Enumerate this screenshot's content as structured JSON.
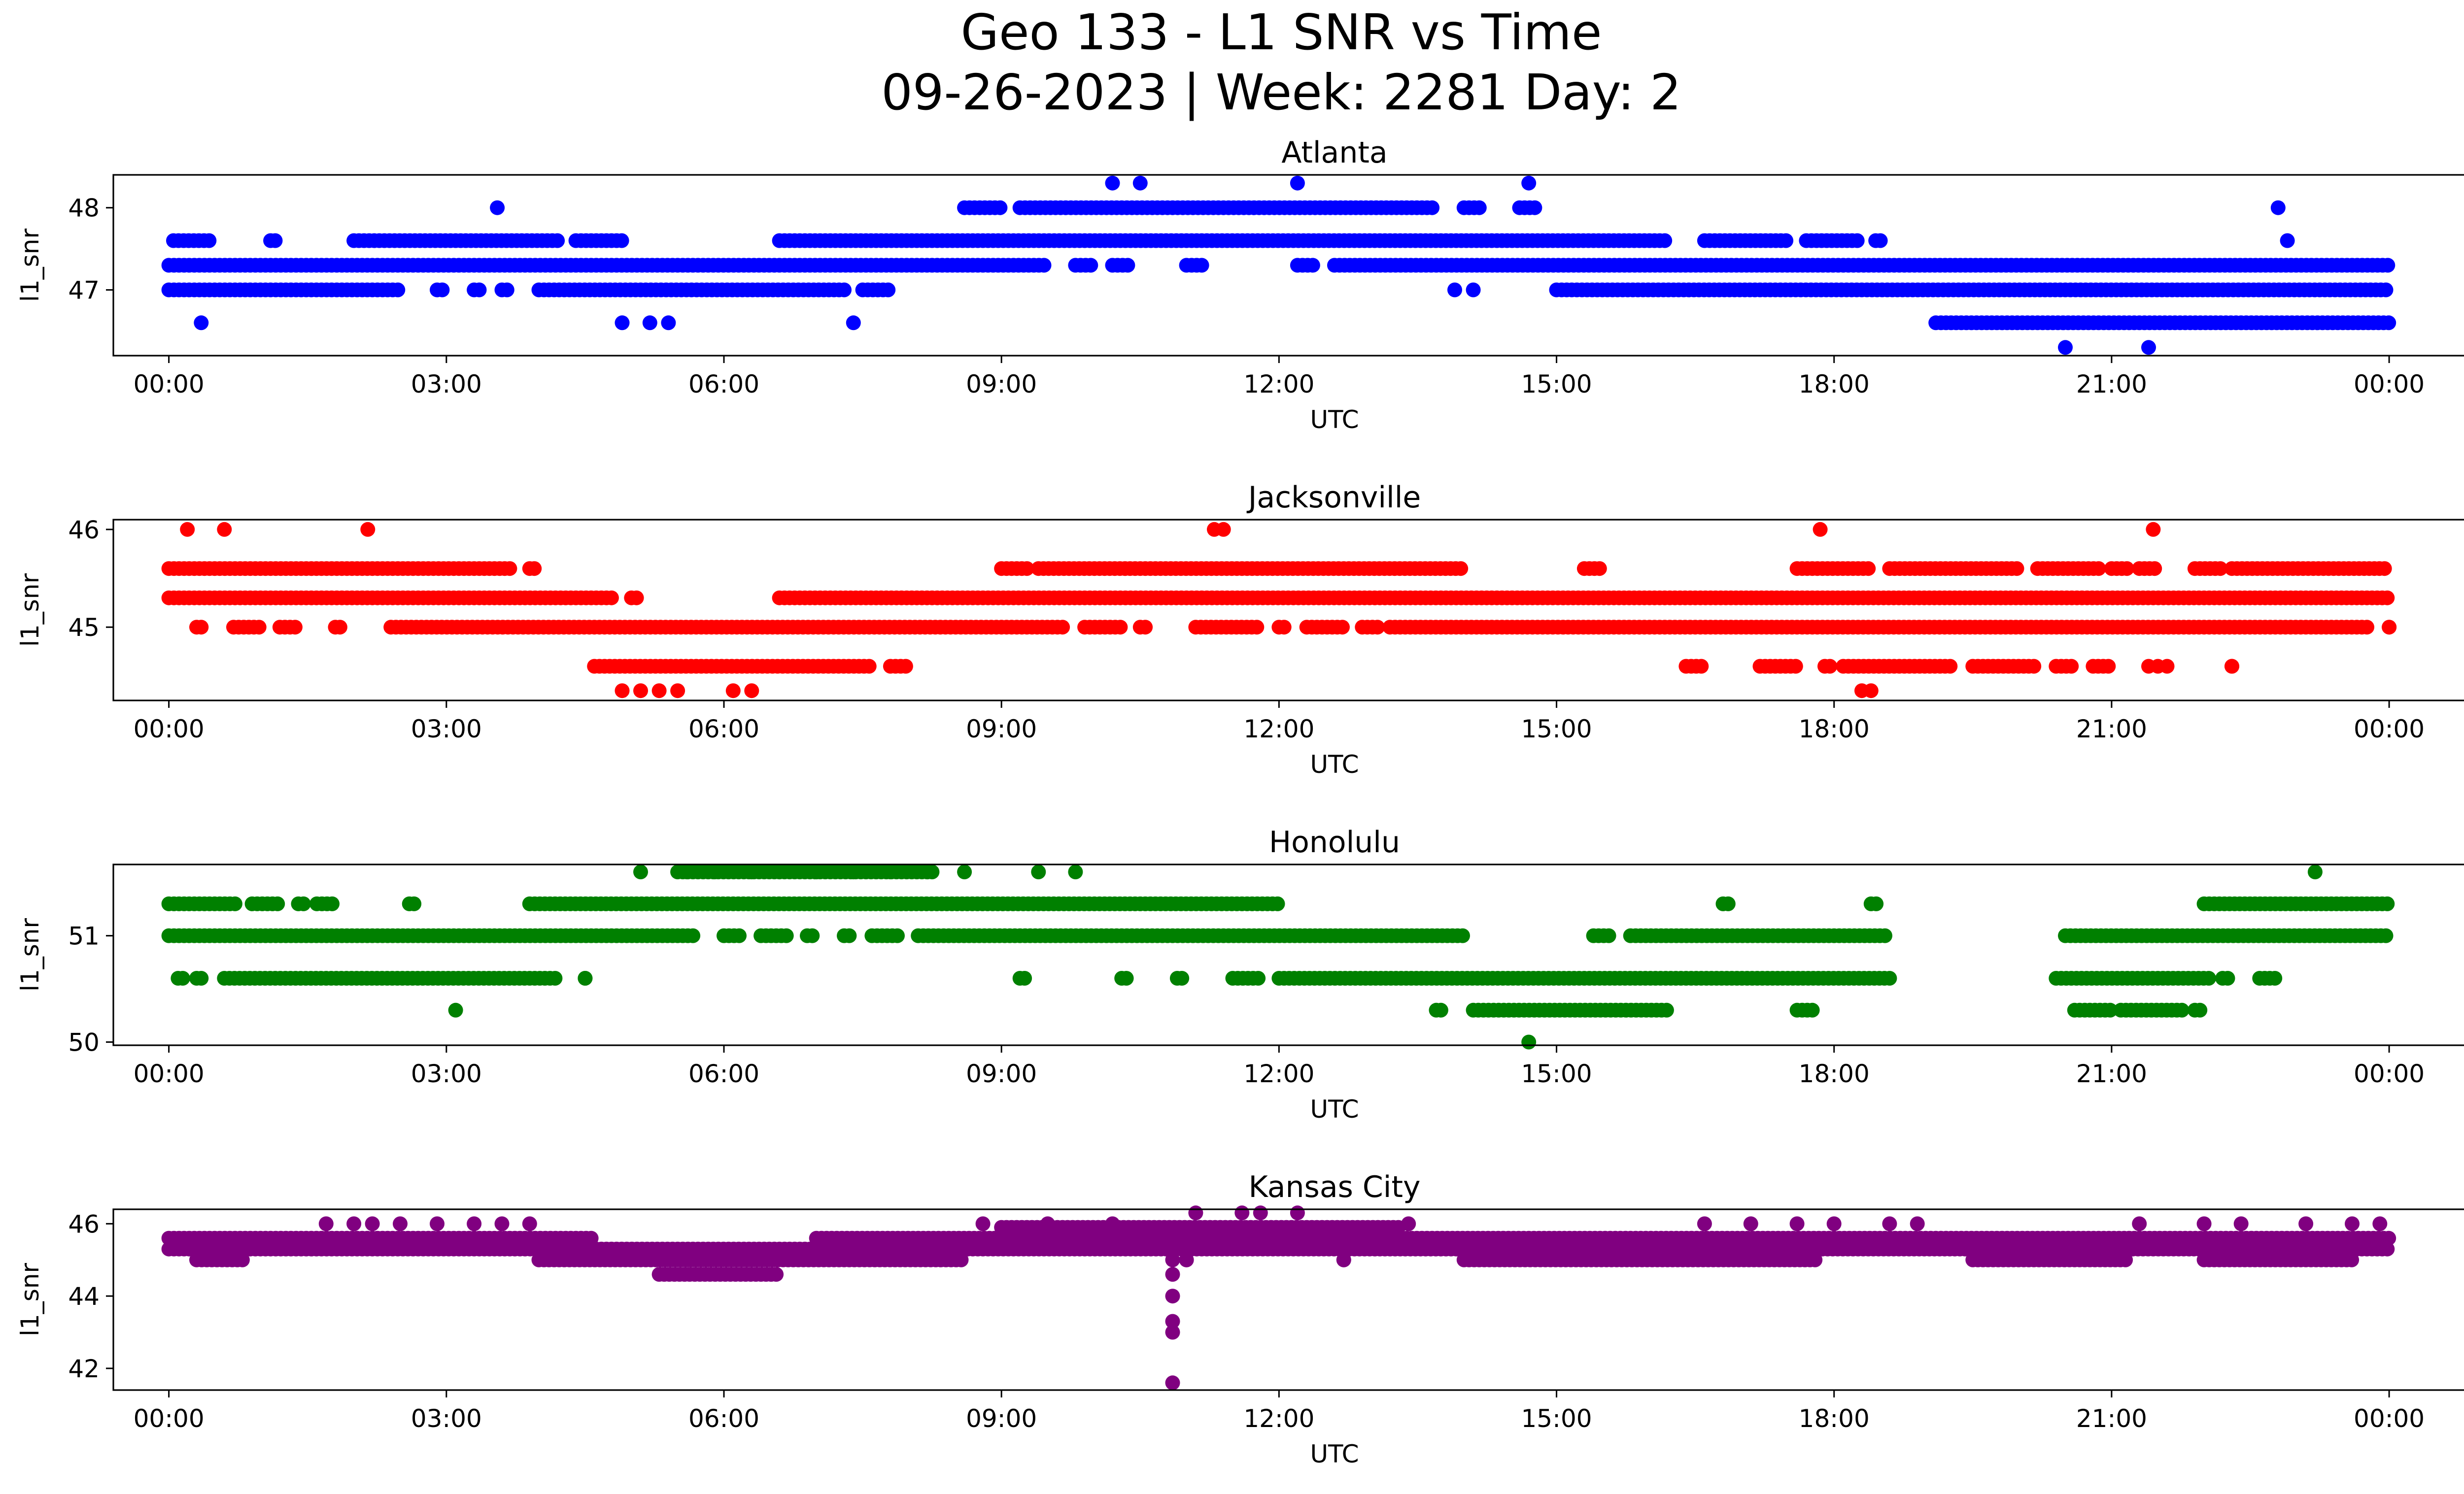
{
  "figure": {
    "title_line1": "Geo 133 - L1 SNR vs Time",
    "title_line2": "09-26-2023 | Week: 2281 Day: 2"
  },
  "chart_data": [
    {
      "type": "scatter",
      "title": "Atlanta",
      "xlabel": "UTC",
      "ylabel": "l1_snr",
      "color": "#0000ff",
      "x_unit": "hours UTC",
      "xlim": [
        -0.6,
        25.8
      ],
      "xticks": [
        "00:00",
        "03:00",
        "06:00",
        "09:00",
        "12:00",
        "15:00",
        "18:00",
        "21:00",
        "00:00"
      ],
      "ylim": [
        46.2,
        48.4
      ],
      "yticks": [
        47,
        48
      ],
      "bands": [
        {
          "y": 47.0,
          "ranges": [
            [
              0.0,
              2.5
            ],
            [
              2.9,
              3.0
            ],
            [
              3.3,
              3.4
            ],
            [
              3.6,
              3.7
            ],
            [
              4.0,
              7.3
            ],
            [
              7.5,
              7.8
            ],
            [
              15.0,
              24.0
            ]
          ]
        },
        {
          "y": 47.3,
          "ranges": [
            [
              0.0,
              9.5
            ],
            [
              9.8,
              10.0
            ],
            [
              10.2,
              10.4
            ],
            [
              11.0,
              11.2
            ],
            [
              12.2,
              12.4
            ],
            [
              12.6,
              24.0
            ]
          ]
        },
        {
          "y": 47.6,
          "ranges": [
            [
              0.05,
              0.45
            ],
            [
              1.1,
              1.15
            ],
            [
              2.0,
              4.2
            ],
            [
              4.4,
              4.9
            ],
            [
              6.6,
              16.2
            ],
            [
              16.6,
              17.5
            ],
            [
              17.7,
              18.3
            ],
            [
              18.45,
              18.5
            ]
          ]
        },
        {
          "y": 48.0,
          "ranges": [
            [
              8.6,
              9.0
            ],
            [
              9.2,
              13.7
            ],
            [
              14.0,
              14.2
            ],
            [
              14.6,
              14.8
            ]
          ]
        },
        {
          "y": 46.6,
          "ranges": [
            [
              19.1,
              24.0
            ]
          ]
        }
      ],
      "points": [
        {
          "x": 0.35,
          "y": 46.6
        },
        {
          "x": 4.9,
          "y": 46.6
        },
        {
          "x": 5.2,
          "y": 46.6
        },
        {
          "x": 5.4,
          "y": 46.6
        },
        {
          "x": 7.4,
          "y": 46.6
        },
        {
          "x": 3.55,
          "y": 48.0
        },
        {
          "x": 10.2,
          "y": 48.3
        },
        {
          "x": 10.5,
          "y": 48.3
        },
        {
          "x": 12.2,
          "y": 48.3
        },
        {
          "x": 14.7,
          "y": 48.3
        },
        {
          "x": 13.9,
          "y": 47.0
        },
        {
          "x": 14.1,
          "y": 47.0
        },
        {
          "x": 20.5,
          "y": 46.3
        },
        {
          "x": 21.4,
          "y": 46.3
        },
        {
          "x": 22.8,
          "y": 48.0
        },
        {
          "x": 22.9,
          "y": 47.6
        }
      ]
    },
    {
      "type": "scatter",
      "title": "Jacksonville",
      "xlabel": "UTC",
      "ylabel": "l1_snr",
      "color": "#ff0000",
      "x_unit": "hours UTC",
      "xlim": [
        -0.6,
        25.8
      ],
      "xticks": [
        "00:00",
        "03:00",
        "06:00",
        "09:00",
        "12:00",
        "15:00",
        "18:00",
        "21:00",
        "00:00"
      ],
      "ylim": [
        44.25,
        46.1
      ],
      "yticks": [
        45,
        46
      ],
      "bands": [
        {
          "y": 45.3,
          "ranges": [
            [
              0.0,
              4.8
            ],
            [
              5.0,
              5.1
            ],
            [
              6.6,
              24.0
            ]
          ]
        },
        {
          "y": 45.6,
          "ranges": [
            [
              0.0,
              3.7
            ],
            [
              3.9,
              3.95
            ],
            [
              9.0,
              9.3
            ],
            [
              9.4,
              14.0
            ],
            [
              15.3,
              15.5
            ],
            [
              17.6,
              18.4
            ],
            [
              18.6,
              20.0
            ],
            [
              20.2,
              20.9
            ],
            [
              21.0,
              21.2
            ],
            [
              21.3,
              21.5
            ],
            [
              21.9,
              22.2
            ],
            [
              22.3,
              24.0
            ]
          ]
        },
        {
          "y": 45.0,
          "ranges": [
            [
              0.3,
              0.35
            ],
            [
              0.7,
              1.0
            ],
            [
              1.2,
              1.4
            ],
            [
              1.8,
              1.85
            ],
            [
              2.4,
              9.7
            ],
            [
              9.9,
              10.3
            ],
            [
              10.5,
              10.6
            ],
            [
              11.1,
              11.8
            ],
            [
              12.0,
              12.1
            ],
            [
              12.3,
              12.7
            ],
            [
              12.9,
              13.1
            ],
            [
              13.2,
              23.8
            ],
            [
              24.0,
              24.0
            ]
          ]
        },
        {
          "y": 44.6,
          "ranges": [
            [
              4.6,
              7.6
            ],
            [
              7.8,
              8.0
            ],
            [
              16.4,
              16.6
            ],
            [
              17.2,
              17.6
            ],
            [
              17.9,
              18.0
            ],
            [
              18.1,
              19.3
            ],
            [
              19.5,
              20.2
            ],
            [
              20.4,
              20.6
            ],
            [
              20.8,
              21.0
            ],
            [
              22.3,
              22.3
            ]
          ]
        }
      ],
      "points": [
        {
          "x": 0.2,
          "y": 46.0
        },
        {
          "x": 0.6,
          "y": 46.0
        },
        {
          "x": 2.15,
          "y": 46.0
        },
        {
          "x": 11.3,
          "y": 46.0
        },
        {
          "x": 11.4,
          "y": 46.0
        },
        {
          "x": 17.85,
          "y": 46.0
        },
        {
          "x": 21.45,
          "y": 46.0
        },
        {
          "x": 4.9,
          "y": 44.35
        },
        {
          "x": 5.1,
          "y": 44.35
        },
        {
          "x": 5.3,
          "y": 44.35
        },
        {
          "x": 5.5,
          "y": 44.35
        },
        {
          "x": 6.1,
          "y": 44.35
        },
        {
          "x": 6.3,
          "y": 44.35
        },
        {
          "x": 18.3,
          "y": 44.35
        },
        {
          "x": 18.4,
          "y": 44.35
        },
        {
          "x": 21.4,
          "y": 44.6
        },
        {
          "x": 21.5,
          "y": 44.6
        },
        {
          "x": 21.6,
          "y": 44.6
        }
      ]
    },
    {
      "type": "scatter",
      "title": "Honolulu",
      "xlabel": "UTC",
      "ylabel": "l1_snr",
      "color": "#008000",
      "x_unit": "hours UTC",
      "xlim": [
        -0.6,
        25.8
      ],
      "xticks": [
        "00:00",
        "03:00",
        "06:00",
        "09:00",
        "12:00",
        "15:00",
        "18:00",
        "21:00",
        "00:00"
      ],
      "ylim": [
        49.97,
        51.67
      ],
      "yticks": [
        50,
        51
      ],
      "bands": [
        {
          "y": 51.0,
          "ranges": [
            [
              0.0,
              5.7
            ],
            [
              6.0,
              6.2
            ],
            [
              6.4,
              6.7
            ],
            [
              6.9,
              7.0
            ],
            [
              7.3,
              7.4
            ],
            [
              7.6,
              7.9
            ],
            [
              8.1,
              14.0
            ],
            [
              15.4,
              15.6
            ],
            [
              15.8,
              18.6
            ],
            [
              20.5,
              24.0
            ]
          ]
        },
        {
          "y": 51.3,
          "ranges": [
            [
              0.0,
              0.75
            ],
            [
              0.9,
              1.2
            ],
            [
              1.4,
              1.5
            ],
            [
              1.6,
              1.8
            ],
            [
              2.6,
              2.65
            ],
            [
              3.9,
              12.0
            ],
            [
              16.8,
              16.9
            ],
            [
              18.4,
              18.5
            ],
            [
              22.0,
              24.0
            ]
          ]
        },
        {
          "y": 50.6,
          "ranges": [
            [
              0.1,
              0.15
            ],
            [
              0.3,
              0.35
            ],
            [
              0.6,
              4.2
            ],
            [
              4.5,
              4.5
            ],
            [
              9.2,
              9.25
            ],
            [
              10.3,
              10.35
            ],
            [
              10.9,
              10.95
            ],
            [
              11.5,
              11.8
            ],
            [
              12.0,
              18.6
            ],
            [
              20.4,
              22.1
            ],
            [
              22.2,
              22.3
            ],
            [
              22.6,
              22.8
            ]
          ]
        },
        {
          "y": 50.3,
          "ranges": [
            [
              13.7,
              13.75
            ],
            [
              14.1,
              16.2
            ],
            [
              17.6,
              17.8
            ],
            [
              20.6,
              21.0
            ],
            [
              21.1,
              21.8
            ],
            [
              21.9,
              22.0
            ]
          ]
        }
      ],
      "points": [
        {
          "x": 3.1,
          "y": 50.3
        },
        {
          "x": 5.1,
          "y": 51.6
        },
        {
          "x": 14.7,
          "y": 50.0
        },
        {
          "x": 23.2,
          "y": 51.6
        },
        {
          "x": 9.4,
          "y": 51.6
        },
        {
          "x": 9.8,
          "y": 51.6
        },
        {
          "x": 8.6,
          "y": 51.6
        },
        {
          "x": 5.6,
          "y": 51.6
        },
        {
          "x": 5.9,
          "y": 51.6
        },
        {
          "x": 6.3,
          "y": 51.6
        },
        {
          "x": 6.6,
          "y": 51.6
        },
        {
          "x": 7.0,
          "y": 51.6
        },
        {
          "x": 7.4,
          "y": 51.6
        },
        {
          "x": 7.8,
          "y": 51.6
        },
        {
          "x": 8.2,
          "y": 51.6
        }
      ],
      "bands_extra": [
        {
          "y": 51.6,
          "ranges": [
            [
              5.5,
              8.3
            ]
          ]
        }
      ]
    },
    {
      "type": "scatter",
      "title": "Kansas City",
      "xlabel": "UTC",
      "ylabel": "l1_snr",
      "color": "#800080",
      "x_unit": "hours UTC",
      "xlim": [
        -0.6,
        25.8
      ],
      "xticks": [
        "00:00",
        "03:00",
        "06:00",
        "09:00",
        "12:00",
        "15:00",
        "18:00",
        "21:00",
        "00:00"
      ],
      "ylim": [
        41.4,
        46.4
      ],
      "yticks": [
        42,
        44,
        46
      ],
      "bands": [
        {
          "y": 45.3,
          "ranges": [
            [
              0.0,
              24.0
            ]
          ]
        },
        {
          "y": 45.6,
          "ranges": [
            [
              0.0,
              4.6
            ],
            [
              7.0,
              24.0
            ]
          ]
        },
        {
          "y": 45.0,
          "ranges": [
            [
              0.3,
              0.8
            ],
            [
              4.0,
              8.6
            ],
            [
              11.0,
              11.0
            ],
            [
              12.7,
              12.7
            ],
            [
              14.0,
              17.8
            ],
            [
              19.5,
              21.2
            ],
            [
              22.0,
              23.6
            ]
          ]
        },
        {
          "y": 45.9,
          "ranges": [
            [
              9.0,
              13.3
            ]
          ]
        },
        {
          "y": 44.6,
          "ranges": [
            [
              5.3,
              6.6
            ]
          ]
        }
      ],
      "points": [
        {
          "x": 1.7,
          "y": 46.0
        },
        {
          "x": 2.0,
          "y": 46.0
        },
        {
          "x": 2.2,
          "y": 46.0
        },
        {
          "x": 2.5,
          "y": 46.0
        },
        {
          "x": 2.9,
          "y": 46.0
        },
        {
          "x": 3.3,
          "y": 46.0
        },
        {
          "x": 3.6,
          "y": 46.0
        },
        {
          "x": 3.9,
          "y": 46.0
        },
        {
          "x": 8.8,
          "y": 46.0
        },
        {
          "x": 9.5,
          "y": 46.0
        },
        {
          "x": 10.2,
          "y": 46.0
        },
        {
          "x": 13.4,
          "y": 46.0
        },
        {
          "x": 16.6,
          "y": 46.0
        },
        {
          "x": 17.1,
          "y": 46.0
        },
        {
          "x": 17.6,
          "y": 46.0
        },
        {
          "x": 18.0,
          "y": 46.0
        },
        {
          "x": 18.6,
          "y": 46.0
        },
        {
          "x": 18.9,
          "y": 46.0
        },
        {
          "x": 21.3,
          "y": 46.0
        },
        {
          "x": 22.0,
          "y": 46.0
        },
        {
          "x": 22.4,
          "y": 46.0
        },
        {
          "x": 23.1,
          "y": 46.0
        },
        {
          "x": 23.6,
          "y": 46.0
        },
        {
          "x": 23.9,
          "y": 46.0
        },
        {
          "x": 11.1,
          "y": 46.3
        },
        {
          "x": 11.6,
          "y": 46.3
        },
        {
          "x": 11.8,
          "y": 46.3
        },
        {
          "x": 12.2,
          "y": 46.3
        },
        {
          "x": 10.85,
          "y": 45.0
        },
        {
          "x": 10.85,
          "y": 44.6
        },
        {
          "x": 10.85,
          "y": 44.0
        },
        {
          "x": 10.85,
          "y": 43.3
        },
        {
          "x": 10.85,
          "y": 43.0
        },
        {
          "x": 10.85,
          "y": 41.6
        }
      ]
    }
  ]
}
